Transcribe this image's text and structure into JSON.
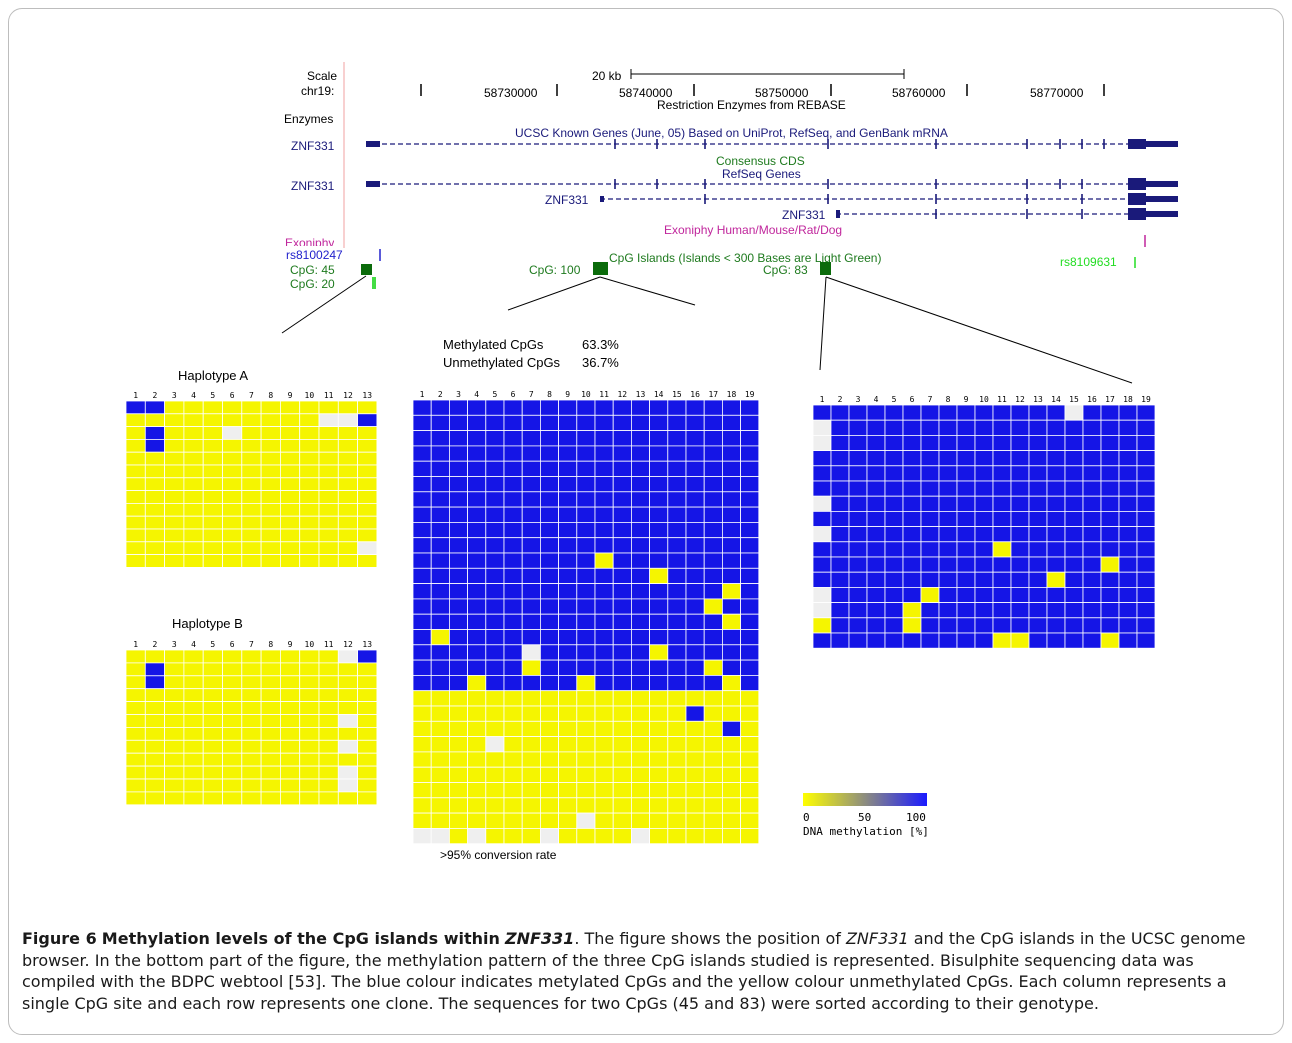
{
  "browser": {
    "scale_label": "Scale",
    "chr_label": "chr19:",
    "scale_bar_text": "20 kb",
    "positions": [
      "58730000",
      "58740000",
      "58750000",
      "58760000",
      "58770000"
    ],
    "track_restriction": "Restriction Enzymes from REBASE",
    "label_enzymes": "Enzymes",
    "track_ucsc": "UCSC Known Genes (June, 05) Based on UniProt, RefSeq, and GenBank mRNA",
    "label_gene_1": "ZNF331",
    "track_consensus": "Consensus CDS",
    "track_refseq": "RefSeq Genes",
    "label_gene_2": "ZNF331",
    "label_gene_3": "ZNF331",
    "label_gene_4": "ZNF331",
    "track_exoniphy": "Exoniphy Human/Mouse/Rat/Dog",
    "label_exoniphy": "Exoniphy",
    "label_rs1": "rs8100247",
    "label_rs2": "rs8109631",
    "track_cpg": "CpG Islands (Islands < 300 Bases are Light Green)",
    "label_cpg45": "CpG: 45",
    "label_cpg20": "CpG: 20",
    "label_cpg100": "CpG: 100",
    "label_cpg83": "CpG: 83"
  },
  "panels": {
    "haplotype_a": "Haplotype A",
    "haplotype_b": "Haplotype B",
    "methylated_label": "Methylated CpGs",
    "methylated_value": "63.3%",
    "unmethylated_label": "Unmethylated CpGs",
    "unmethylated_value": "36.7%",
    "conversion": ">95% conversion rate"
  },
  "legend": {
    "ticks": [
      "0",
      "50",
      "100"
    ],
    "label": "DNA methylation [%]",
    "low_color": "#ffff00",
    "high_color": "#1a1aff"
  },
  "colors": {
    "methylated": "#1515e6",
    "unmethylated": "#f5f500",
    "missing": "#efefef"
  },
  "grids": {
    "hapA": {
      "cols": 13,
      "rows": [
        "MMUUUUUUUUUUU",
        "UUUUUUUUUUXXM",
        "UMUUUXUUUUUUU",
        "UMUUUUUUUUUUU",
        "UUUUUUUUUUUUU",
        "UUUUUUUUUUUUU",
        "UUUUUUUUUUUUU",
        "UUUUUUUUUUUUU",
        "UUUUUUUUUUUUU",
        "UUUUUUUUUUUUU",
        "UUUUUUUUUUUUU",
        "UUUUUUUUUUUUX",
        "UUUUUUUUUUUUU"
      ]
    },
    "hapB": {
      "cols": 13,
      "rows": [
        "UUUUUUUUUUUXM",
        "UMUUUUUUUUUUU",
        "UMUUUUUUUUUUU",
        "UUUUUUUUUUUUU",
        "UUUUUUUUUUUUU",
        "UUUUUUUUUUUXU",
        "UUUUUUUUUUUUU",
        "UUUUUUUUUUUXU",
        "UUUUUUUUUUUUU",
        "UUUUUUUUUUUXU",
        "UUUUUUUUUUUXU",
        "UUUUUUUUUUUUU"
      ]
    },
    "cpg100": {
      "cols": 19,
      "rows": [
        "MMMMMMMMMMMMMMMMMMM",
        "MMMMMMMMMMMMMMMMMMM",
        "MMMMMMMMMMMMMMMMMMM",
        "MMMMMMMMMMMMMMMMMMM",
        "MMMMMMMMMMMMMMMMMMM",
        "MMMMMMMMMMMMMMMMMMM",
        "MMMMMMMMMMMMMMMMMMM",
        "MMMMMMMMMMMMMMMMMMM",
        "MMMMMMMMMMMMMMMMMMM",
        "MMMMMMMMMMMMMMMMMMM",
        "MMMMMMMMMMUMMMMMMMM",
        "MMMMMMMMMMMMMUMMMMM",
        "MMMMMMMMMMMMMMMMMUM",
        "MMMMMMMMMMMMMMMMUMM",
        "MMMMMMMMMMMMMMMMMUM",
        "MUMMMMMMMMMMMMMMMMM",
        "MMMMMMXMMMMMMUMMMMM",
        "MMMMMMUMMMMMMMMMUMM",
        "MMMUMMMMMUMMMMMMMUM",
        "UUUUUUUUUUUUUUUUUUU",
        "UUUUUUUUUUUUUUUMUUU",
        "UUUUUUUUUUUUUUUUUMU",
        "UUUUXUUUUUUUUUUUUUU",
        "UUUUUUUUUUUUUUUUUUU",
        "UUUUUUUUUUUUUUUUUUU",
        "UUUUUUUUUUUUUUUUUUU",
        "UUUUUUUUUUUUUUUUUUU",
        "UUUUUUUUUXUUUUUUUUU",
        "XXUXUUUXUUUUXUUUUUU"
      ]
    },
    "cpg83": {
      "cols": 19,
      "rows": [
        "MMMMMMMMMMMMMMXMMMM",
        "XMMMMMMMMMMMMMMMMMM",
        "XMMMMMMMMMMMMMMMMMM",
        "MMMMMMMMMMMMMMMMMMM",
        "MMMMMMMMMMMMMMMMMMM",
        "MMMMMMMMMMMMMMMMMMM",
        "XMMMMMMMMMMMMMMMMMM",
        "MMMMMMMMMMMMMMMMMMM",
        "XMMMMMMMMMMMMMMMMMM",
        "MMMMMMMMMMUMMMMMMMM",
        "MMMMMMMMMMMMMMMMUMM",
        "MMMMMMMMMMMMMUMMMMM",
        "XMMMMMUMMMMMMMMMMMM",
        "XMMMMUMMMMMMMMMMMMM",
        "UMMMMUMMMMMMMMMMMMM",
        "MMMMMMMMMMUUMMMMUMM"
      ]
    }
  },
  "caption": {
    "figure_label": "Figure 6",
    "title_start": "Methylation levels of the CpG islands within",
    "title_gene": "ZNF331",
    "text_1": ". The figure shows the position of",
    "gene_italic": "ZNF331",
    "text_2": "and the CpG islands in the UCSC genome browser. In the bottom part of the figure, the methylation pattern of the three CpG islands studied is represented. Bisulphite sequencing data was compiled with the BDPC webtool [53]. The blue colour indicates metylated CpGs and the yellow colour unmethylated CpGs. Each column represents a single CpG site and each row represents one clone. The sequences for two CpGs (45 and 83) were sorted according to their genotype."
  }
}
